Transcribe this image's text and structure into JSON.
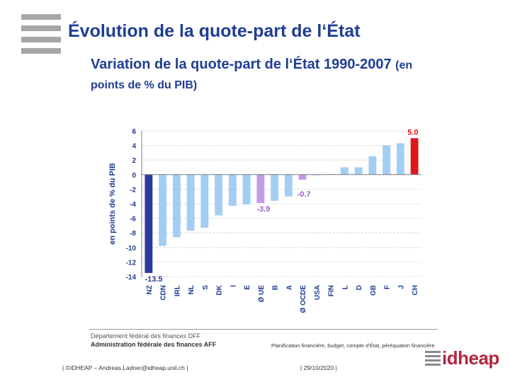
{
  "slide": {
    "title": "Évolution de la quote-part de l‘État"
  },
  "chart_data": {
    "type": "bar",
    "title": "Variation de la quote-part de l‘État 1990-2007",
    "subtitle": "(en points de % du PIB)",
    "xlabel": "",
    "ylabel": "en points de % du PIB",
    "ylim": [
      -14,
      6
    ],
    "yticks": [
      6,
      4,
      2,
      0,
      -2,
      -4,
      -6,
      -8,
      -10,
      -12,
      -14
    ],
    "grid": true,
    "categories": [
      "NZ",
      "CDN",
      "IRL",
      "NL",
      "S",
      "DK",
      "I",
      "E",
      "Ø UE",
      "B",
      "A",
      "Ø OCDE",
      "USA",
      "FIN",
      "L",
      "D",
      "GB",
      "F",
      "J",
      "CH"
    ],
    "values": [
      -13.5,
      -9.8,
      -8.6,
      -7.7,
      -7.3,
      -5.6,
      -4.3,
      -4.1,
      -3.9,
      -3.6,
      -3.0,
      -0.7,
      -0.1,
      0.1,
      1.0,
      1.0,
      2.5,
      4.0,
      4.3,
      5.0
    ],
    "colors": [
      "#2b3a9a",
      "#a3cdf3",
      "#a3cdf3",
      "#a3cdf3",
      "#a3cdf3",
      "#a3cdf3",
      "#a3cdf3",
      "#a3cdf3",
      "#c49ae6",
      "#a3cdf3",
      "#a3cdf3",
      "#c49ae6",
      "#a3cdf3",
      "#a3cdf3",
      "#a3cdf3",
      "#a3cdf3",
      "#a3cdf3",
      "#a3cdf3",
      "#a3cdf3",
      "#e0161c"
    ],
    "annotations": [
      {
        "category": "NZ",
        "text": "-13.5",
        "color": "#1f3d94"
      },
      {
        "category": "Ø UE",
        "text": "-3.9",
        "color": "#9a5fcf"
      },
      {
        "category": "Ø OCDE",
        "text": "-0.7",
        "color": "#9a5fcf"
      },
      {
        "category": "CH",
        "text": "5.0",
        "color": "#e0161c"
      }
    ]
  },
  "source": {
    "line1": "Département fédéral des finances DFF",
    "line2": "Administration fédérale des finances AFF",
    "division": "Planification financière, budget, compte d‘État, péréquation financière"
  },
  "footer": {
    "copyright": "| ©IDHEAP – Andreas.Ladner@idheap.unil.ch |",
    "date": "| 29/10/2020 |",
    "logo": "idheap"
  }
}
